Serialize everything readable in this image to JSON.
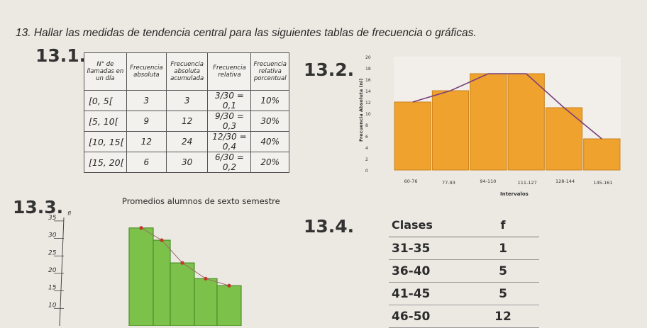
{
  "heading": "13. Hallar las medidas de tendencia central para las siguientes tablas de frecuencia o gráficas.",
  "ex1": {
    "label": "13.1.",
    "headers": [
      "N° de llamadas en un día",
      "Frecuencia absoluta",
      "Frecuencia absoluta acumulada",
      "Frecuencia relativa",
      "Frecuencia relativa porcentual"
    ],
    "rows": [
      [
        "[0, 5[",
        "3",
        "3",
        "3/30 = 0,1",
        "10%"
      ],
      [
        "[5, 10[",
        "9",
        "12",
        "9/30 = 0,3",
        "30%"
      ],
      [
        "[10, 15[",
        "12",
        "24",
        "12/30 = 0,4",
        "40%"
      ],
      [
        "[15, 20[",
        "6",
        "30",
        "6/30 = 0,2",
        "20%"
      ]
    ]
  },
  "ex2": {
    "label": "13.2.",
    "chart_data": {
      "type": "bar",
      "categories": [
        "60-76",
        "77-93",
        "94-110",
        "111-127",
        "128-144",
        "145-161"
      ],
      "values": [
        12,
        14,
        17,
        17,
        11,
        5.5
      ],
      "polygon": [
        12,
        14,
        17,
        17,
        11,
        5.5
      ],
      "xlabel": "Intervalos",
      "ylabel": "Frecuencia Absoluta (ni)",
      "ylim": [
        0,
        20
      ],
      "yticks": [
        "0",
        "2",
        "4",
        "6",
        "8",
        "10",
        "12",
        "14",
        "16",
        "18",
        "20"
      ],
      "bar_color": "#f0a22e",
      "line_color": "#7a3f7a"
    }
  },
  "ex3": {
    "label": "13.3.",
    "chart_data": {
      "type": "bar",
      "title": "Promedios alumnos de sexto semestre",
      "ylabel": "fi",
      "yticks": [
        "10",
        "15",
        "20",
        "25",
        "30",
        "35"
      ],
      "values": [
        33,
        29.5,
        23,
        18.5,
        16.5
      ],
      "ylim": [
        5,
        37
      ],
      "bar_color": "#7cc14a",
      "marker_color": "#c0392b"
    }
  },
  "ex4": {
    "label": "13.4.",
    "headers": [
      "Clases",
      "f"
    ],
    "rows": [
      [
        "31-35",
        "1"
      ],
      [
        "36-40",
        "5"
      ],
      [
        "41-45",
        "5"
      ],
      [
        "46-50",
        "12"
      ]
    ]
  }
}
